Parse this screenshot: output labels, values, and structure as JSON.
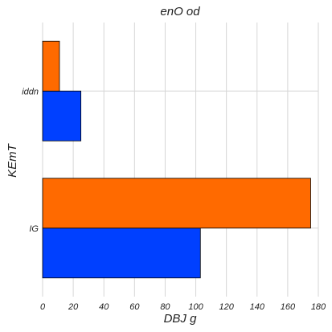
{
  "chart_data": {
    "type": "bar",
    "orientation": "horizontal",
    "title": "enO od",
    "xlabel": "DBJ g",
    "ylabel": "KEmT",
    "categories": [
      "IG",
      "iddn"
    ],
    "series": [
      {
        "color": "#0040ff",
        "values": [
          103,
          25
        ]
      },
      {
        "color": "#ff6a00",
        "values": [
          175,
          11
        ]
      }
    ],
    "xlim": [
      0,
      180
    ],
    "xticks": [
      0,
      20,
      40,
      60,
      80,
      100,
      120,
      140,
      160,
      180
    ],
    "grid": true,
    "legend": "none"
  }
}
